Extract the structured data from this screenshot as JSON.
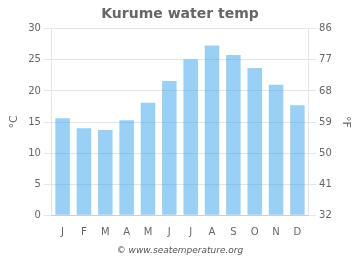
{
  "chart_data": {
    "type": "bar",
    "title": "Kurume water temp",
    "categories": [
      "J",
      "F",
      "M",
      "A",
      "M",
      "J",
      "J",
      "A",
      "S",
      "O",
      "N",
      "D"
    ],
    "values": [
      15.6,
      14.0,
      13.7,
      15.3,
      18.1,
      21.6,
      25.1,
      27.3,
      25.8,
      23.7,
      21.0,
      17.7
    ],
    "ylabel": "°C",
    "y2label": "°F",
    "ylim": [
      0,
      30
    ],
    "yticks": [
      0,
      5,
      10,
      15,
      20,
      25,
      30
    ],
    "y2lim": [
      32,
      86
    ],
    "y2ticks": [
      32,
      41,
      50,
      59,
      68,
      77,
      86
    ],
    "grid": true,
    "footer": "© www.seatemperature.org"
  }
}
